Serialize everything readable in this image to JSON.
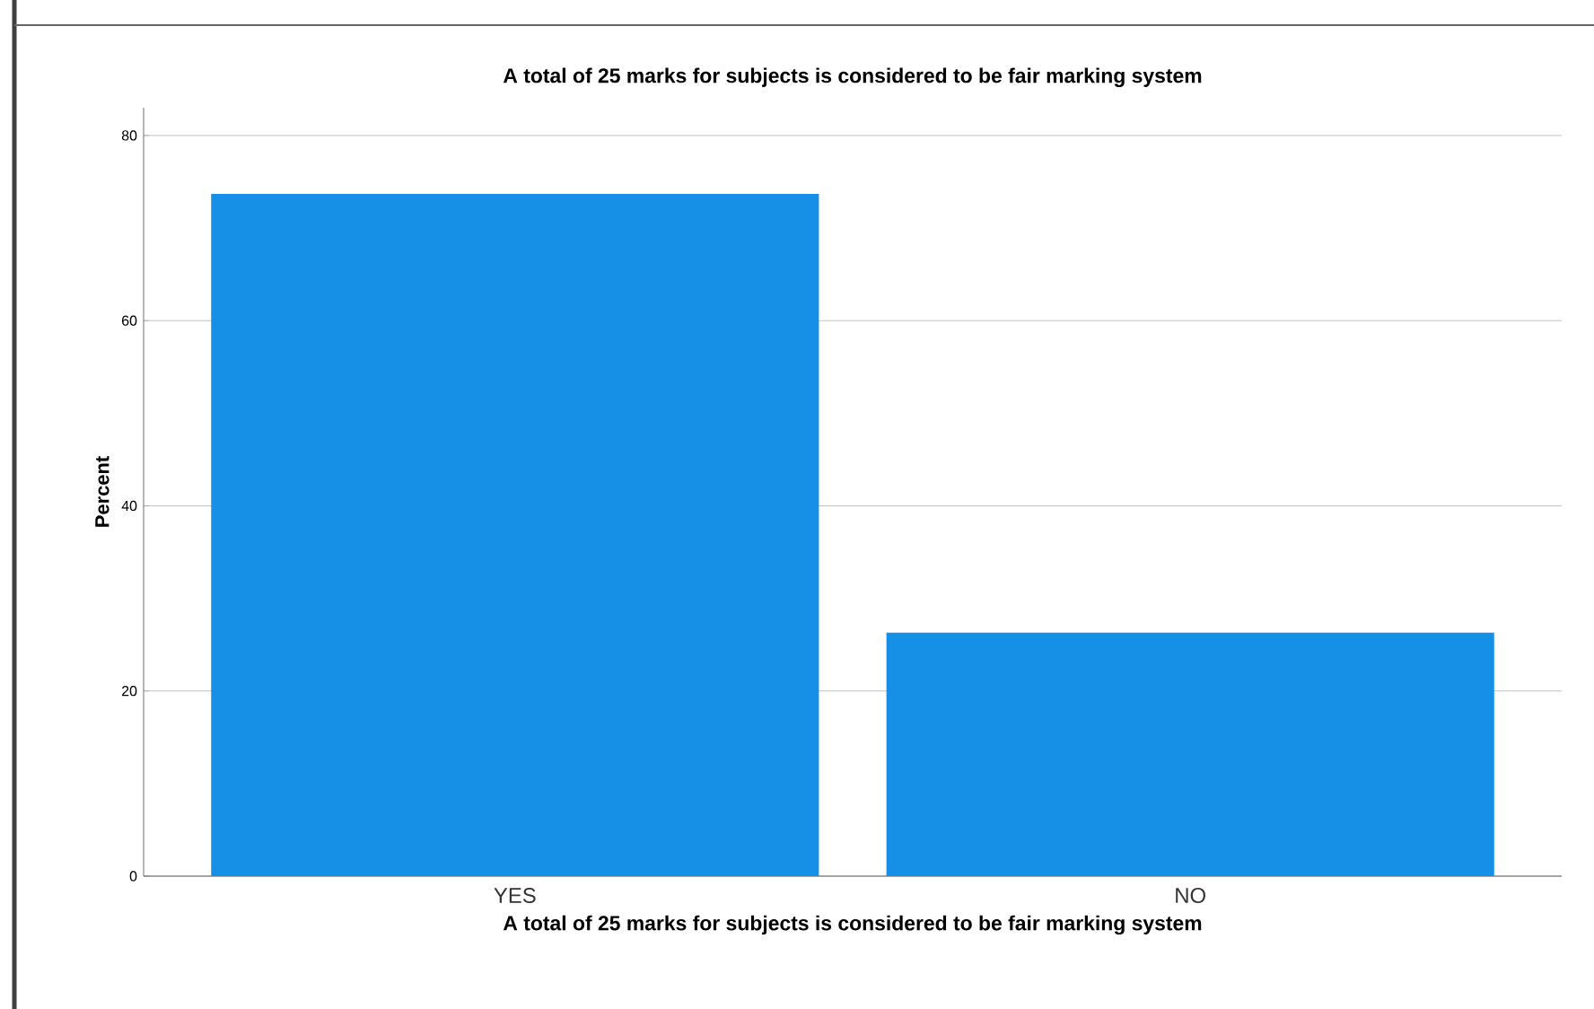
{
  "chart_data": {
    "type": "bar",
    "title": "A total of 25 marks for subjects is considered to be fair marking system",
    "xlabel": "A total of 25 marks for subjects is considered to be fair marking system",
    "ylabel": "Percent",
    "categories": [
      "YES",
      "NO"
    ],
    "values": [
      73.7,
      26.3
    ],
    "color": "#1690e6",
    "ylim": [
      0,
      83
    ],
    "yticks": [
      0,
      20,
      40,
      60,
      80
    ],
    "grid": "y"
  }
}
